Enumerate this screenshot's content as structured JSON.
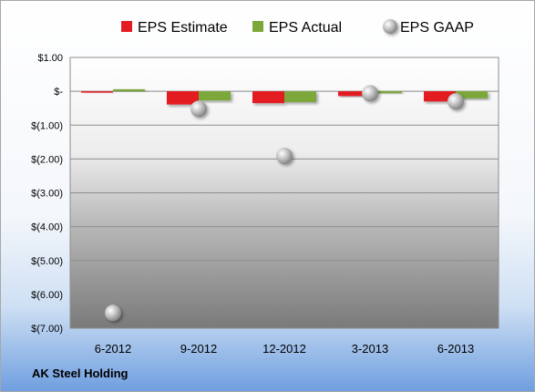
{
  "chart_data": {
    "type": "bar",
    "company": "AK Steel Holding",
    "categories": [
      "6-2012",
      "9-2012",
      "12-2012",
      "3-2013",
      "6-2013"
    ],
    "series": [
      {
        "name": "EPS Estimate",
        "kind": "bar",
        "color": "#e31c23",
        "values": [
          -0.03,
          -0.39,
          -0.35,
          -0.14,
          -0.3
        ]
      },
      {
        "name": "EPS Actual",
        "kind": "bar",
        "color": "#7ca83a",
        "values": [
          0.06,
          -0.27,
          -0.32,
          -0.06,
          -0.21
        ]
      },
      {
        "name": "EPS GAAP",
        "kind": "marker",
        "color": "#c0c0c0",
        "values": [
          -6.55,
          -0.52,
          -1.91,
          -0.06,
          -0.3
        ]
      }
    ],
    "y_ticks": [
      {
        "value": 1,
        "label": "$1.00"
      },
      {
        "value": 0,
        "label": "$-"
      },
      {
        "value": -1,
        "label": "$(1.00)"
      },
      {
        "value": -2,
        "label": "$(2.00)"
      },
      {
        "value": -3,
        "label": "$(3.00)"
      },
      {
        "value": -4,
        "label": "$(4.00)"
      },
      {
        "value": -5,
        "label": "$(5.00)"
      },
      {
        "value": -6,
        "label": "$(6.00)"
      },
      {
        "value": -7,
        "label": "$(7.00)"
      }
    ],
    "ylim": [
      -7,
      1
    ],
    "grid": true,
    "legend": "top"
  }
}
